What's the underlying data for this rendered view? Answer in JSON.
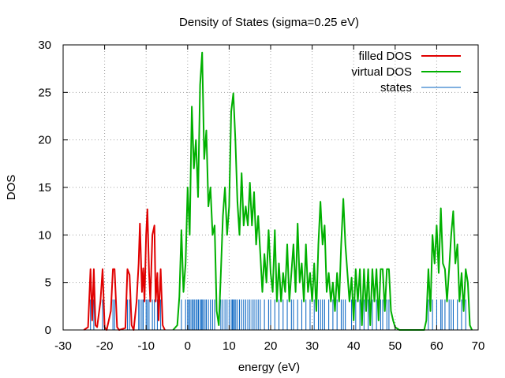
{
  "chart_data": {
    "type": "line",
    "title": "Density of States (sigma=0.25 eV)",
    "xlabel": "energy (eV)",
    "ylabel": "DOS",
    "xlim": [
      -30,
      70
    ],
    "ylim": [
      0,
      30
    ],
    "xticks": [
      -30,
      -20,
      -10,
      0,
      10,
      20,
      30,
      40,
      50,
      60,
      70
    ],
    "yticks": [
      0,
      5,
      10,
      15,
      20,
      25,
      30
    ],
    "grid": true,
    "legend_position": "top-right",
    "series": [
      {
        "name": "filled DOS",
        "color": "#e00000",
        "points": [
          [
            -25,
            0
          ],
          [
            -24,
            0.3
          ],
          [
            -23.4,
            6.4
          ],
          [
            -23.0,
            1.0
          ],
          [
            -22.6,
            6.4
          ],
          [
            -22.2,
            0.5
          ],
          [
            -21.8,
            0.3
          ],
          [
            -21.0,
            3.0
          ],
          [
            -20.5,
            6.4
          ],
          [
            -20.0,
            0.3
          ],
          [
            -19.5,
            0
          ],
          [
            -18.5,
            2.0
          ],
          [
            -18.0,
            6.4
          ],
          [
            -17.6,
            6.4
          ],
          [
            -17.0,
            0.3
          ],
          [
            -16.5,
            0
          ],
          [
            -15.0,
            0.2
          ],
          [
            -14.5,
            6.4
          ],
          [
            -14.0,
            5.8
          ],
          [
            -13.5,
            0.5
          ],
          [
            -13.0,
            0
          ],
          [
            -12.3,
            3.0
          ],
          [
            -11.8,
            7.0
          ],
          [
            -11.5,
            11.2
          ],
          [
            -11.0,
            4.0
          ],
          [
            -10.7,
            6.5
          ],
          [
            -10.4,
            3.0
          ],
          [
            -10.0,
            10.0
          ],
          [
            -9.7,
            12.7
          ],
          [
            -9.3,
            6.0
          ],
          [
            -9.0,
            3.0
          ],
          [
            -8.5,
            10.0
          ],
          [
            -8.0,
            11.0
          ],
          [
            -7.7,
            3.0
          ],
          [
            -7.3,
            6.0
          ],
          [
            -7.0,
            1.0
          ],
          [
            -6.5,
            6.4
          ],
          [
            -6.0,
            0.5
          ],
          [
            -5.5,
            0
          ]
        ]
      },
      {
        "name": "virtual DOS",
        "color": "#00b000",
        "points": [
          [
            -3.5,
            0
          ],
          [
            -2.5,
            0.5
          ],
          [
            -2.0,
            3.5
          ],
          [
            -1.5,
            10.5
          ],
          [
            -1.0,
            4.0
          ],
          [
            -0.5,
            7.0
          ],
          [
            0,
            15.0
          ],
          [
            0.5,
            10.0
          ],
          [
            1.0,
            23.5
          ],
          [
            1.5,
            17.0
          ],
          [
            2.0,
            20.0
          ],
          [
            2.5,
            14.0
          ],
          [
            3.0,
            25.8
          ],
          [
            3.5,
            29.2
          ],
          [
            4.0,
            18.0
          ],
          [
            4.5,
            21.0
          ],
          [
            5.0,
            13.0
          ],
          [
            5.5,
            15.0
          ],
          [
            6.0,
            10.0
          ],
          [
            6.5,
            11.0
          ],
          [
            7.0,
            2.0
          ],
          [
            7.5,
            0.5
          ],
          [
            8.0,
            6.0
          ],
          [
            8.5,
            12.0
          ],
          [
            9.0,
            15.0
          ],
          [
            9.5,
            10.0
          ],
          [
            10.0,
            13.0
          ],
          [
            10.5,
            23.0
          ],
          [
            11.0,
            24.9
          ],
          [
            11.5,
            20.0
          ],
          [
            12.0,
            13.5
          ],
          [
            12.5,
            10.0
          ],
          [
            13.0,
            16.5
          ],
          [
            13.5,
            11.0
          ],
          [
            14.0,
            13.0
          ],
          [
            14.5,
            11.0
          ],
          [
            15.0,
            15.5
          ],
          [
            15.5,
            11.0
          ],
          [
            16.0,
            14.5
          ],
          [
            16.5,
            9.0
          ],
          [
            17.0,
            12.0
          ],
          [
            17.5,
            8.0
          ],
          [
            18.0,
            4.0
          ],
          [
            18.5,
            8.0
          ],
          [
            19.0,
            5.0
          ],
          [
            19.5,
            10.5
          ],
          [
            20.0,
            6.0
          ],
          [
            20.5,
            4.0
          ],
          [
            21.0,
            10.5
          ],
          [
            21.5,
            3.0
          ],
          [
            22.0,
            7.0
          ],
          [
            22.5,
            3.0
          ],
          [
            23.0,
            6.0
          ],
          [
            23.5,
            4.0
          ],
          [
            24.0,
            9.0
          ],
          [
            24.5,
            3.0
          ],
          [
            25.0,
            6.0
          ],
          [
            25.5,
            9.0
          ],
          [
            26.0,
            4.0
          ],
          [
            26.5,
            11.2
          ],
          [
            27.0,
            5.0
          ],
          [
            27.5,
            7.0
          ],
          [
            28.0,
            3.0
          ],
          [
            28.5,
            9.0
          ],
          [
            29.0,
            4.0
          ],
          [
            29.5,
            6.0
          ],
          [
            30.0,
            3.0
          ],
          [
            30.5,
            7.0
          ],
          [
            31.0,
            2.0
          ],
          [
            31.5,
            9.0
          ],
          [
            32.0,
            13.5
          ],
          [
            32.5,
            9.0
          ],
          [
            33.0,
            11.0
          ],
          [
            33.5,
            4.0
          ],
          [
            34.0,
            6.0
          ],
          [
            34.5,
            3.0
          ],
          [
            35.0,
            5.0
          ],
          [
            35.5,
            2.0
          ],
          [
            36.0,
            6.0
          ],
          [
            36.5,
            3.0
          ],
          [
            37.0,
            9.0
          ],
          [
            37.5,
            13.8
          ],
          [
            38.0,
            9.0
          ],
          [
            38.5,
            6.0
          ],
          [
            39.0,
            3.0
          ],
          [
            39.5,
            5.5
          ],
          [
            40.0,
            1.0
          ],
          [
            40.5,
            6.4
          ],
          [
            41.0,
            3.0
          ],
          [
            41.5,
            6.4
          ],
          [
            42.0,
            0.5
          ],
          [
            42.5,
            6.4
          ],
          [
            43.0,
            2.0
          ],
          [
            43.5,
            6.4
          ],
          [
            44.0,
            0.5
          ],
          [
            44.5,
            6.4
          ],
          [
            45.0,
            3.0
          ],
          [
            45.5,
            6.4
          ],
          [
            46.0,
            1.0
          ],
          [
            46.5,
            6.4
          ],
          [
            47.0,
            6.4
          ],
          [
            47.5,
            2.0
          ],
          [
            48.0,
            6.4
          ],
          [
            48.5,
            6.4
          ],
          [
            49.0,
            2.0
          ],
          [
            49.5,
            1.0
          ],
          [
            50.0,
            0.3
          ],
          [
            51.0,
            0
          ],
          [
            57.0,
            0
          ],
          [
            57.5,
            1.0
          ],
          [
            58.0,
            6.4
          ],
          [
            58.5,
            2.0
          ],
          [
            59.0,
            10.0
          ],
          [
            59.5,
            7.0
          ],
          [
            60.0,
            11.0
          ],
          [
            60.5,
            6.0
          ],
          [
            61.0,
            12.8
          ],
          [
            61.5,
            7.0
          ],
          [
            62.0,
            6.4
          ],
          [
            62.5,
            3.0
          ],
          [
            63.0,
            6.4
          ],
          [
            63.5,
            10.0
          ],
          [
            64.0,
            12.5
          ],
          [
            64.5,
            7.0
          ],
          [
            65.0,
            9.0
          ],
          [
            65.5,
            3.0
          ],
          [
            66.0,
            6.0
          ],
          [
            66.5,
            2.0
          ],
          [
            67.0,
            6.4
          ],
          [
            67.5,
            5.0
          ],
          [
            68.0,
            0.5
          ],
          [
            68.5,
            0
          ]
        ]
      },
      {
        "name": "states",
        "color": "#0060c0",
        "height": 3.2,
        "x": [
          -23.4,
          -22.6,
          -20.5,
          -18.0,
          -17.6,
          -14.5,
          -14.0,
          -11.8,
          -11.5,
          -11.0,
          -10.7,
          -10.0,
          -9.7,
          -9.3,
          -8.5,
          -8.0,
          -7.3,
          -6.5,
          -1.5,
          -0.5,
          0.0,
          0.3,
          0.6,
          1.0,
          1.3,
          1.6,
          2.0,
          2.3,
          2.6,
          3.0,
          3.3,
          3.5,
          3.8,
          4.2,
          4.5,
          5.0,
          5.5,
          6.0,
          6.5,
          8.0,
          8.5,
          9.0,
          9.5,
          10.0,
          10.5,
          10.8,
          11.0,
          11.3,
          11.6,
          12.0,
          12.5,
          13.0,
          13.5,
          14.0,
          14.5,
          15.0,
          15.5,
          16.0,
          16.5,
          17.0,
          17.5,
          18.5,
          19.5,
          20.0,
          21.0,
          22.0,
          23.0,
          24.0,
          25.0,
          25.5,
          26.5,
          27.5,
          28.5,
          29.5,
          30.5,
          31.5,
          32.0,
          32.5,
          33.0,
          34.0,
          35.0,
          36.0,
          37.0,
          37.5,
          38.0,
          39.5,
          40.5,
          41.5,
          42.5,
          43.5,
          44.5,
          45.5,
          46.5,
          47.0,
          48.0,
          48.5,
          58.0,
          59.0,
          60.0,
          61.0,
          61.3,
          62.0,
          63.0,
          63.5,
          64.0,
          65.0,
          66.0,
          67.0
        ]
      }
    ]
  }
}
